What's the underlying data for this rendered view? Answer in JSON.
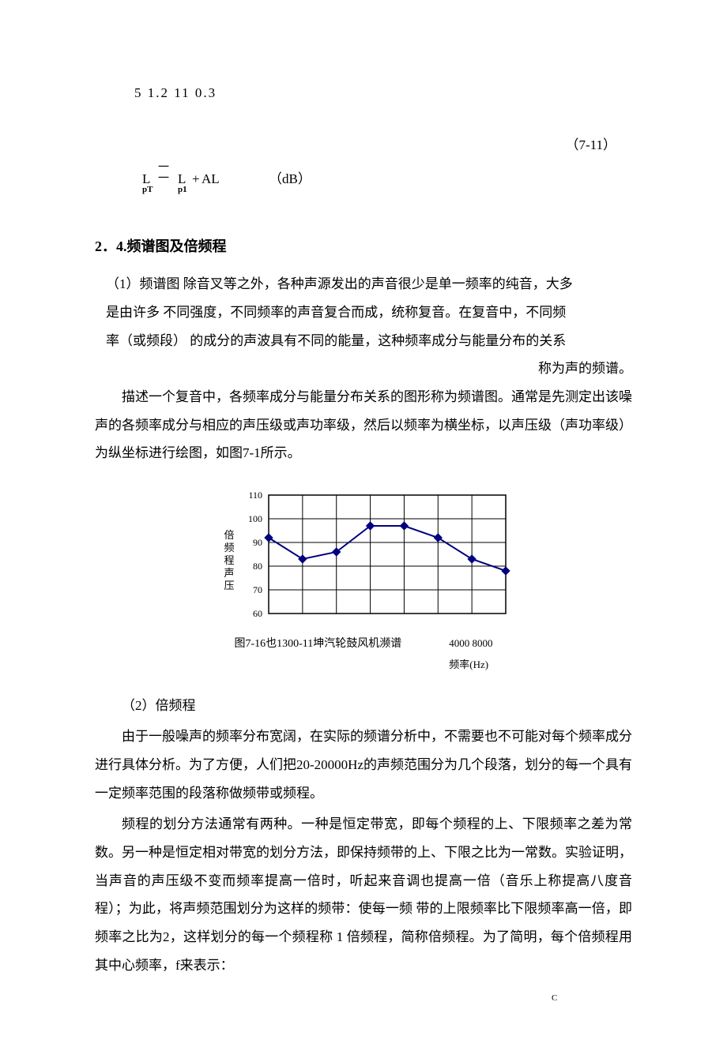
{
  "top_numbers": "5 1.2 11 0.3",
  "equation": {
    "number": "（7-11）",
    "L": "L",
    "sub_pT": "pT",
    "eqsym_top": "一",
    "eqsym_bot": "一",
    "L2": "L",
    "sub_p1": "p1",
    "plus": "+",
    "AL": "AL",
    "dB": "（dB）"
  },
  "section_title": "2．4.频谱图及倍频程",
  "p1_line1": "（1）频谱图 除音叉等之外，各种声源发出的声音很少是单一频率的纯音，大多",
  "p1_line2": "是由许多 不同强度，不同频率的声音复合而成，统称复音。在复音中，不同频",
  "p1_line3": "率（或频段） 的成分的声波具有不同的能量，这种频率成分与能量分布的关系",
  "p1_line4": "称为声的频谱。",
  "p2": "描述一个复音中，各频率成分与能量分布关系的图形称为频谱图。通常是先测定出该噪声的各频率成分与相应的声压级或声功率级，然后以频率为横坐标，以声压级（声功率级）为纵坐标进行绘图，如图7-1所示。",
  "chart": {
    "type": "line",
    "ylabel": "倍频程声压",
    "y_ticks": [
      60,
      70,
      80,
      90,
      100,
      110
    ],
    "ylim": [
      60,
      110
    ],
    "x_count": 8,
    "x_labels_right": "4000  8000",
    "xlabel": "频率(Hz)",
    "caption_main": "图7-16也1300-11坤汽轮鼓风机濒谱",
    "values": [
      92,
      83,
      86,
      97,
      97,
      92,
      83,
      78
    ],
    "line_color": "#000080",
    "marker_color": "#000080",
    "marker_size": 5,
    "grid_color": "#000000",
    "background_color": "#ffffff",
    "axis_color": "#000000",
    "ylabel_fontsize": 13,
    "tick_fontsize": 12
  },
  "p3_title": "（2）倍频程",
  "p4": "由于一般噪声的频率分布宽阔，在实际的频谱分析中，不需要也不可能对每个频率成分进行具体分析。为了方便，人们把20-20000Hz的声频范围分为几个段落，划分的每一个具有一定频率范围的段落称做频带或频程。",
  "p5": "频程的划分方法通常有两种。一种是恒定带宽，即每个频程的上、下限频率之差为常数。另一种是恒定相对带宽的划分方法，即保持频带的上、下限之比为一常数。实验证明，当声音的声压级不变而频率提高一倍时，听起来音调也提高一倍（音乐上称提高八度音程）；为此，将声频范围划分为这样的频带：使每一频 带的上限频率比下限频率高一倍，即频率之比为2，这样划分的每一个频程称 1 倍频程，简称倍频程。为了简明，每个倍频程用其中心频率，",
  "p5_tail_f": "f",
  "p5_tail_c": "C",
  "p5_tail_rest": "来表示："
}
